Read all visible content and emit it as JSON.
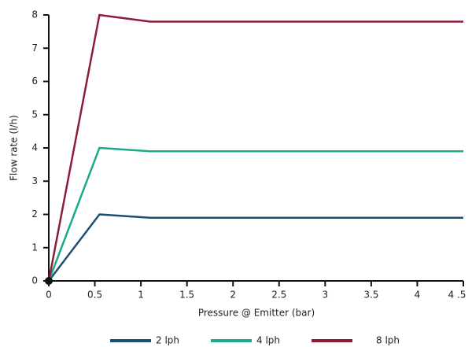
{
  "chart_data": {
    "type": "line",
    "x_label": "Pressure @ Emitter (bar)",
    "y_label": "Flow rate (l/h)",
    "x": [
      0,
      0.55,
      1.1,
      4.5
    ],
    "series": [
      {
        "name": "2 lph",
        "color": "#1b4f72",
        "values": [
          0,
          2,
          1.9,
          1.9
        ]
      },
      {
        "name": "4 lph",
        "color": "#1aaa8a",
        "values": [
          0,
          4,
          3.9,
          3.9
        ]
      },
      {
        "name": "8 lph",
        "color": "#8b1e35",
        "values": [
          0,
          8,
          7.8,
          7.8
        ]
      }
    ],
    "xlim": [
      0,
      4.5
    ],
    "xticks": [
      0,
      0.5,
      1,
      1.5,
      2,
      2.5,
      3,
      3.5,
      4,
      {
        "value": 4.5,
        "label": "4 .5"
      }
    ],
    "ylim": [
      0,
      8
    ],
    "yticks": [
      0,
      1,
      2,
      3,
      4,
      5,
      6,
      7,
      8
    ],
    "legend": "bottom"
  }
}
